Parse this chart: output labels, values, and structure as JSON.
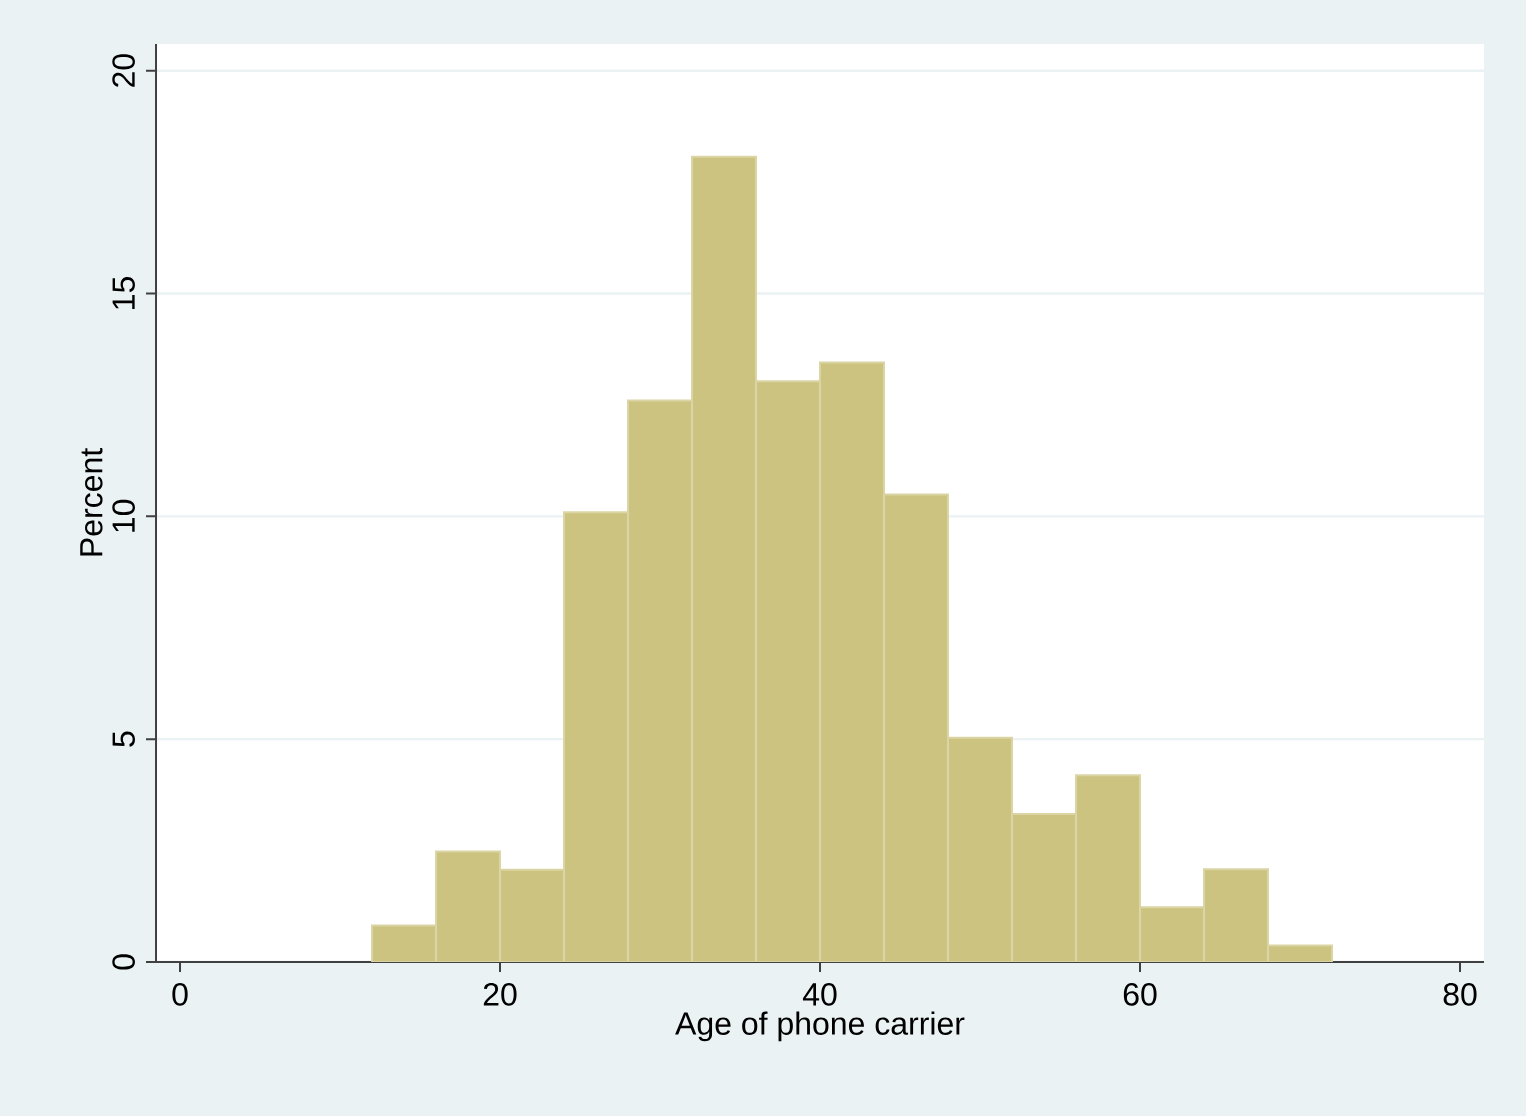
{
  "chart_data": {
    "type": "histogram",
    "xlabel": "Age of phone carrier",
    "ylabel": "Percent",
    "bins": [
      12,
      16,
      20,
      24,
      28,
      32,
      36,
      40,
      44,
      48,
      52,
      56,
      60,
      64,
      68,
      72
    ],
    "values": [
      0.82,
      2.48,
      2.07,
      10.09,
      12.6,
      18.07,
      13.03,
      13.45,
      10.49,
      5.03,
      3.32,
      4.19,
      1.23,
      2.08,
      0.37
    ],
    "color": "#cbc37f",
    "xlim": [
      -1.5,
      81.5
    ],
    "ylim": [
      0,
      20.6
    ],
    "xticks": [
      0,
      20,
      40,
      60,
      80
    ],
    "yticks": [
      0,
      5,
      10,
      15,
      20
    ],
    "grid": "y"
  }
}
